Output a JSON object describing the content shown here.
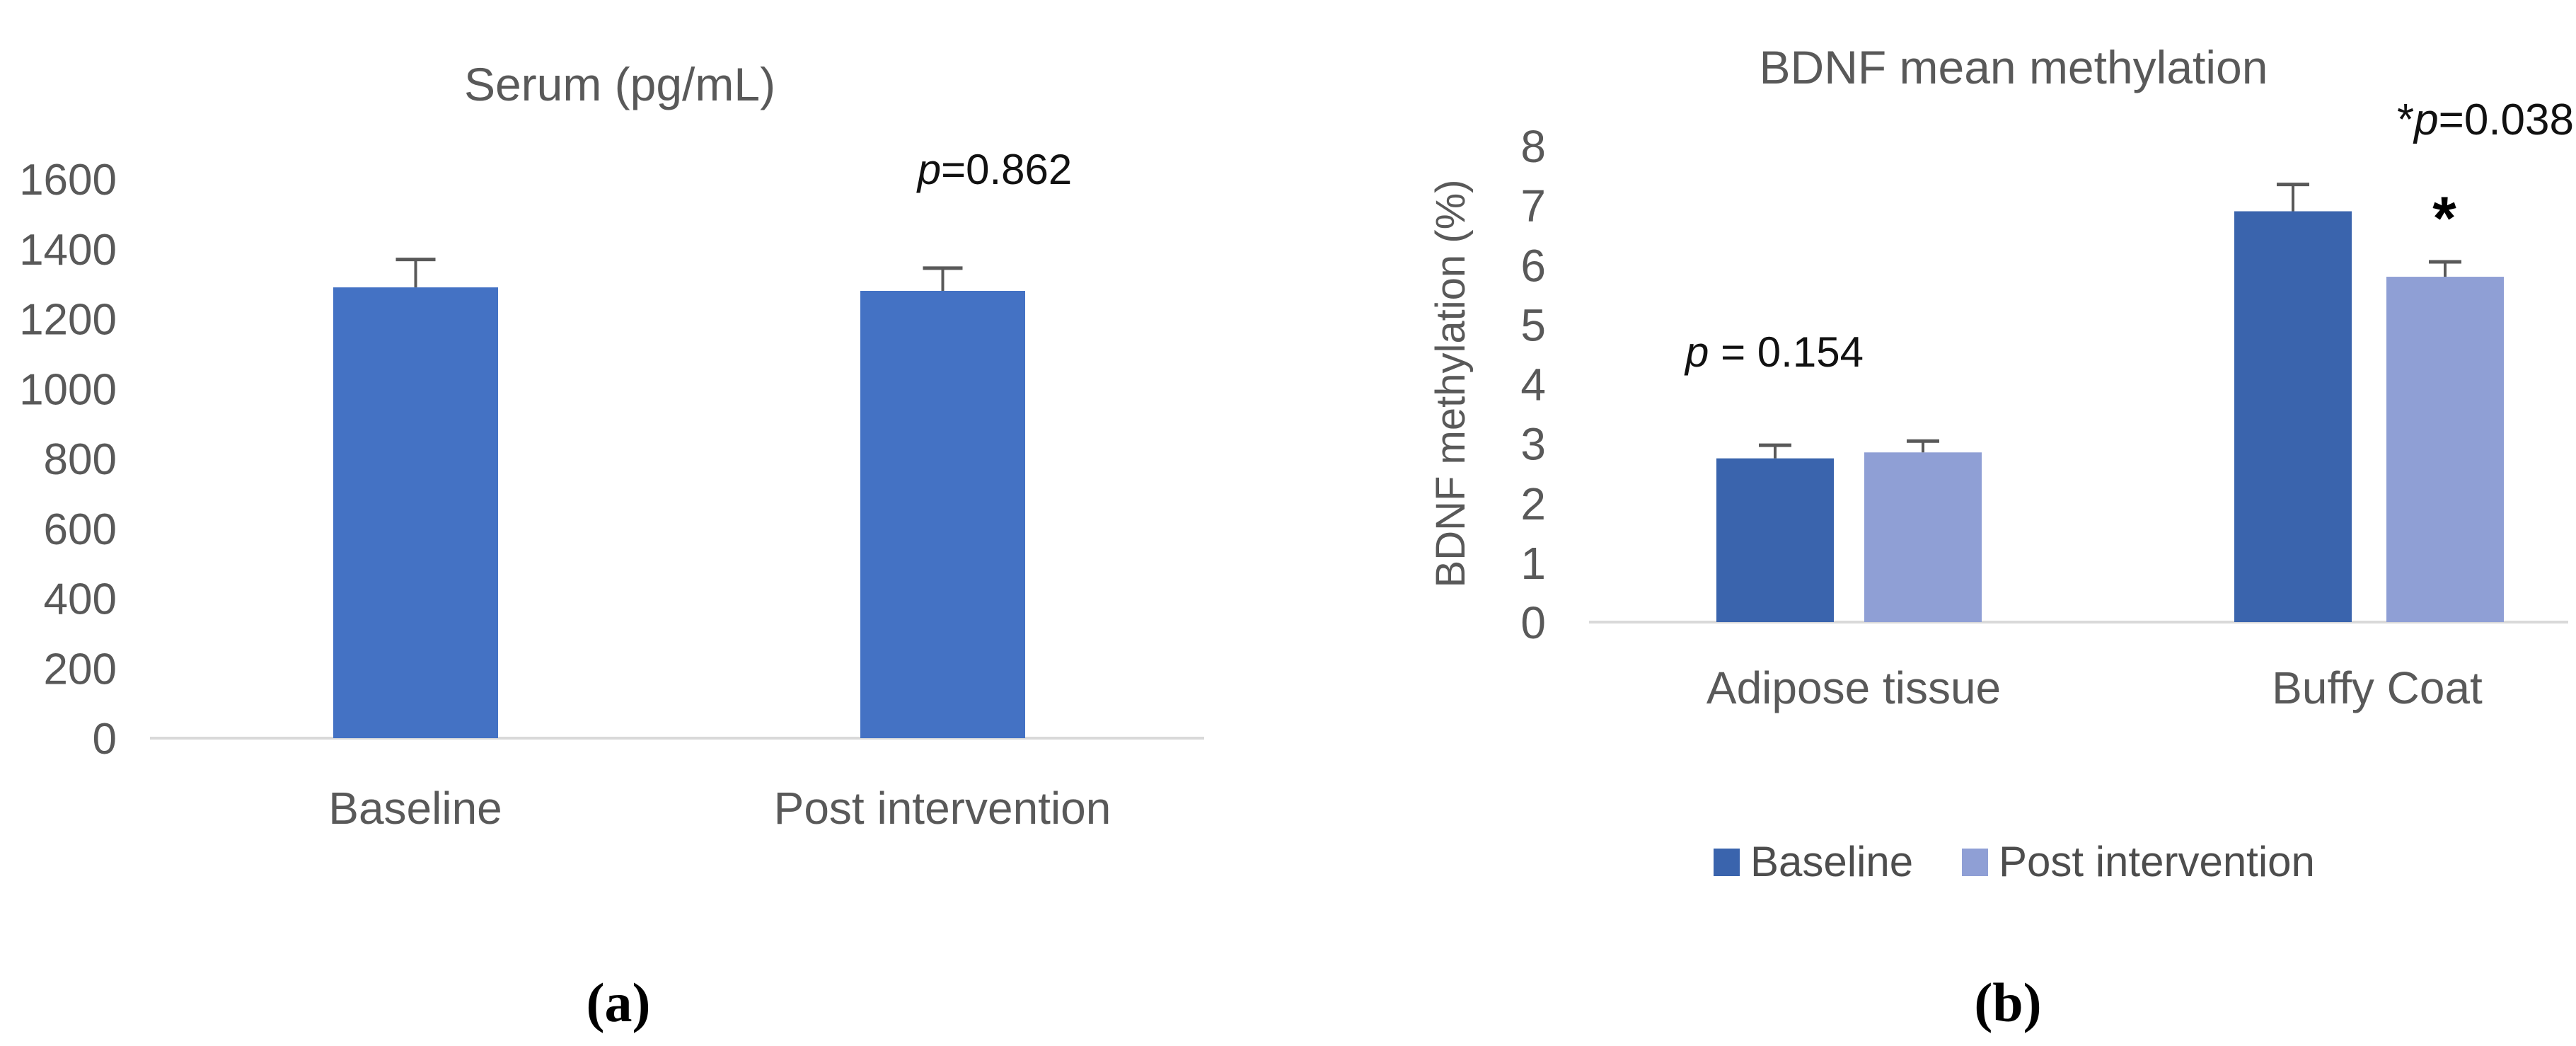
{
  "figure": {
    "panel_labels": {
      "a": "(a)",
      "b": "(b)"
    }
  },
  "chart_data": [
    {
      "id": "serum",
      "type": "bar",
      "title": "Serum (pg/mL)",
      "xlabel": "",
      "ylabel": "",
      "categories": [
        "Baseline",
        "Post intervention"
      ],
      "series": [
        {
          "name": "Serum",
          "color": "#4472C4",
          "values": [
            1290,
            1280
          ],
          "errors_plus": [
            80,
            65
          ]
        }
      ],
      "ylim": [
        0,
        1600
      ],
      "ytick_step": 200,
      "grid": false,
      "legend_position": "none",
      "annotations": {
        "p_value": {
          "star": "",
          "p_italic": "p",
          "p_rest": "=0.862"
        }
      }
    },
    {
      "id": "bdnf",
      "type": "bar",
      "title": "BDNF mean methylation",
      "xlabel": "",
      "ylabel": "BDNF methylation (%)",
      "categories": [
        "Adipose tissue",
        "Buffy Coat"
      ],
      "series": [
        {
          "name": "Baseline",
          "color": "#3A64AD",
          "values": [
            2.75,
            6.9
          ],
          "errors_plus": [
            0.22,
            0.45
          ]
        },
        {
          "name": "Post intervention",
          "color": "#8F9FD5",
          "values": [
            2.85,
            5.8
          ],
          "errors_plus": [
            0.19,
            0.25
          ]
        }
      ],
      "ylim": [
        0,
        8
      ],
      "ytick_step": 1,
      "grid": false,
      "legend_position": "bottom",
      "annotations": {
        "group_p": {
          "star": "",
          "p_italic": "p",
          "p_rest": " = 0.154"
        },
        "sig_p": {
          "star": "*",
          "p_italic": "p",
          "p_rest": "=0.038"
        },
        "sig_marker": "*"
      }
    }
  ],
  "style": {
    "axis_line_color": "#D9D9D9",
    "error_bar_color": "#595959"
  }
}
